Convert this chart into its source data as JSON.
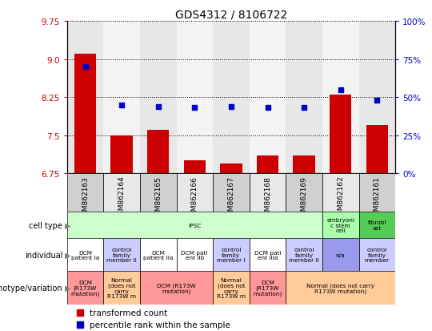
{
  "title": "GDS4312 / 8106722",
  "samples": [
    "GSM862163",
    "GSM862164",
    "GSM862165",
    "GSM862166",
    "GSM862167",
    "GSM862168",
    "GSM862169",
    "GSM862162",
    "GSM862161"
  ],
  "bar_values": [
    9.1,
    7.5,
    7.6,
    7.0,
    6.95,
    7.1,
    7.1,
    8.3,
    7.7
  ],
  "dot_values": [
    70,
    45,
    44,
    43,
    44,
    43,
    43,
    55,
    48
  ],
  "ylim_left": [
    6.75,
    9.75
  ],
  "ylim_right": [
    0,
    100
  ],
  "yticks_left": [
    6.75,
    7.5,
    8.25,
    9.0,
    9.75
  ],
  "yticks_right": [
    0,
    25,
    50,
    75,
    100
  ],
  "bar_color": "#cc0000",
  "dot_color": "#0000cc",
  "cell_items": [
    {
      "label": "iPSC",
      "color": "#ccffcc",
      "start": 0,
      "end": 7
    },
    {
      "label": "embryoni\nc stem\ncell",
      "color": "#aaffaa",
      "start": 7,
      "end": 8
    },
    {
      "label": "fibrobl\nast",
      "color": "#55cc55",
      "start": 8,
      "end": 9
    }
  ],
  "individual_row": [
    {
      "label": "DCM\npatient Ia",
      "color": "#ffffff",
      "start": 0,
      "end": 1
    },
    {
      "label": "control\nfamily\nmember II",
      "color": "#ccccff",
      "start": 1,
      "end": 2
    },
    {
      "label": "DCM\npatient IIa",
      "color": "#ffffff",
      "start": 2,
      "end": 3
    },
    {
      "label": "DCM pati\nent IIb",
      "color": "#ffffff",
      "start": 3,
      "end": 4
    },
    {
      "label": "control\nfamily\nmember I",
      "color": "#ccccff",
      "start": 4,
      "end": 5
    },
    {
      "label": "DCM pati\nent IIIa",
      "color": "#ffffff",
      "start": 5,
      "end": 6
    },
    {
      "label": "control\nfamily\nmember II",
      "color": "#ccccff",
      "start": 6,
      "end": 7
    },
    {
      "label": "n/a",
      "color": "#9999ee",
      "start": 7,
      "end": 8
    },
    {
      "label": "control\nfamily\nmember",
      "color": "#ccccff",
      "start": 8,
      "end": 9
    }
  ],
  "genotype_row": [
    {
      "label": "DCM\n(R173W\nmutation)",
      "color": "#ff9999",
      "start": 0,
      "end": 1
    },
    {
      "label": "Normal\n(does not\ncarry\nR173W m",
      "color": "#ffcc99",
      "start": 1,
      "end": 2
    },
    {
      "label": "DCM (R173W\nmutation)",
      "color": "#ff9999",
      "start": 2,
      "end": 4
    },
    {
      "label": "Normal\n(does not\ncarry\nR173W m",
      "color": "#ffcc99",
      "start": 4,
      "end": 5
    },
    {
      "label": "DCM\n(R173W\nmutation)",
      "color": "#ff9999",
      "start": 5,
      "end": 6
    },
    {
      "label": "Normal (does not carry\nR173W mutation)",
      "color": "#ffcc99",
      "start": 6,
      "end": 9
    }
  ],
  "row_labels": [
    "cell type",
    "individual",
    "genotype/variation"
  ],
  "legend_labels": [
    "transformed count",
    "percentile rank within the sample"
  ],
  "legend_colors": [
    "#cc0000",
    "#0000cc"
  ],
  "col_bg_colors": [
    "#d0d0d0",
    "#e8e8e8"
  ]
}
